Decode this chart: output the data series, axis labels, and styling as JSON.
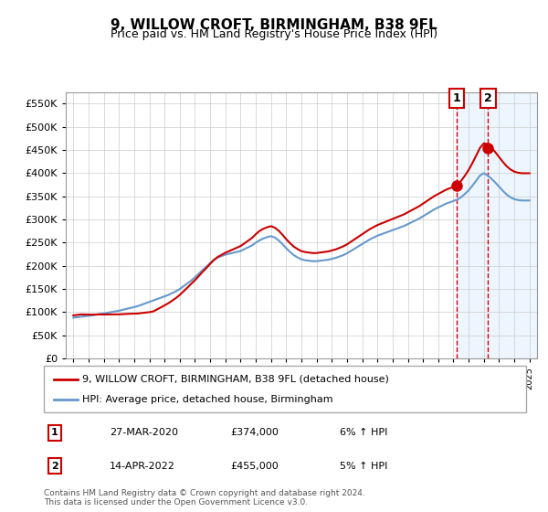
{
  "title": "9, WILLOW CROFT, BIRMINGHAM, B38 9FL",
  "subtitle": "Price paid vs. HM Land Registry's House Price Index (HPI)",
  "legend_label1": "9, WILLOW CROFT, BIRMINGHAM, B38 9FL (detached house)",
  "legend_label2": "HPI: Average price, detached house, Birmingham",
  "annotation1_label": "1",
  "annotation1_date": "27-MAR-2020",
  "annotation1_price": "£374,000",
  "annotation1_hpi": "6% ↑ HPI",
  "annotation2_label": "2",
  "annotation2_date": "14-APR-2022",
  "annotation2_price": "£455,000",
  "annotation2_hpi": "5% ↑ HPI",
  "footer": "Contains HM Land Registry data © Crown copyright and database right 2024.\nThis data is licensed under the Open Government Licence v3.0.",
  "line1_color": "#cc0000",
  "line2_color": "#6699cc",
  "shade_color": "#ddeeff",
  "vline_color": "#cc0000",
  "marker1_x": 2020.23,
  "marker1_y": 374000,
  "marker2_x": 2022.28,
  "marker2_y": 455000,
  "vline1_x": 2020.23,
  "vline2_x": 2022.28,
  "ylim": [
    0,
    575000
  ],
  "xlim": [
    1994.5,
    2025.5
  ],
  "yticks": [
    0,
    50000,
    100000,
    150000,
    200000,
    250000,
    300000,
    350000,
    400000,
    450000,
    500000,
    550000
  ],
  "ytick_labels": [
    "£0",
    "£50K",
    "£100K",
    "£150K",
    "£200K",
    "£250K",
    "£300K",
    "£350K",
    "£400K",
    "£450K",
    "£500K",
    "£550K"
  ],
  "xticks": [
    1995,
    1996,
    1997,
    1998,
    1999,
    2000,
    2001,
    2002,
    2003,
    2004,
    2005,
    2006,
    2007,
    2008,
    2009,
    2010,
    2011,
    2012,
    2013,
    2014,
    2015,
    2016,
    2017,
    2018,
    2019,
    2020,
    2021,
    2022,
    2023,
    2024,
    2025
  ],
  "hpi_years": [
    1995,
    1995.25,
    1995.5,
    1995.75,
    1996,
    1996.25,
    1996.5,
    1996.75,
    1997,
    1997.25,
    1997.5,
    1997.75,
    1998,
    1998.25,
    1998.5,
    1998.75,
    1999,
    1999.25,
    1999.5,
    1999.75,
    2000,
    2000.25,
    2000.5,
    2000.75,
    2001,
    2001.25,
    2001.5,
    2001.75,
    2002,
    2002.25,
    2002.5,
    2002.75,
    2003,
    2003.25,
    2003.5,
    2003.75,
    2004,
    2004.25,
    2004.5,
    2004.75,
    2005,
    2005.25,
    2005.5,
    2005.75,
    2006,
    2006.25,
    2006.5,
    2006.75,
    2007,
    2007.25,
    2007.5,
    2007.75,
    2008,
    2008.25,
    2008.5,
    2008.75,
    2009,
    2009.25,
    2009.5,
    2009.75,
    2010,
    2010.25,
    2010.5,
    2010.75,
    2011,
    2011.25,
    2011.5,
    2011.75,
    2012,
    2012.25,
    2012.5,
    2012.75,
    2013,
    2013.25,
    2013.5,
    2013.75,
    2014,
    2014.25,
    2014.5,
    2014.75,
    2015,
    2015.25,
    2015.5,
    2015.75,
    2016,
    2016.25,
    2016.5,
    2016.75,
    2017,
    2017.25,
    2017.5,
    2017.75,
    2018,
    2018.25,
    2018.5,
    2018.75,
    2019,
    2019.25,
    2019.5,
    2019.75,
    2020,
    2020.25,
    2020.5,
    2020.75,
    2021,
    2021.25,
    2021.5,
    2021.75,
    2022,
    2022.25,
    2022.5,
    2022.75,
    2023,
    2023.25,
    2023.5,
    2023.75,
    2024,
    2024.25,
    2024.5,
    2024.75,
    2025
  ],
  "hpi_values": [
    88000,
    89000,
    90000,
    91000,
    92000,
    93000,
    94500,
    96000,
    97000,
    98500,
    100000,
    101500,
    103000,
    105000,
    107000,
    109000,
    111000,
    113000,
    116000,
    119000,
    122000,
    125000,
    128000,
    131000,
    134000,
    137000,
    141000,
    145000,
    150000,
    156000,
    162000,
    168000,
    175000,
    183000,
    191000,
    198000,
    206000,
    213000,
    218000,
    221000,
    224000,
    226000,
    228000,
    230000,
    232000,
    236000,
    240000,
    244000,
    250000,
    255000,
    259000,
    262000,
    264000,
    261000,
    255000,
    247000,
    238000,
    230000,
    223000,
    218000,
    214000,
    212000,
    211000,
    210000,
    210000,
    211000,
    212000,
    213000,
    215000,
    217000,
    220000,
    223000,
    227000,
    232000,
    237000,
    242000,
    247000,
    252000,
    257000,
    261000,
    265000,
    268000,
    271000,
    274000,
    277000,
    280000,
    283000,
    286000,
    290000,
    294000,
    298000,
    302000,
    307000,
    312000,
    317000,
    322000,
    326000,
    330000,
    334000,
    337000,
    340000,
    343000,
    348000,
    355000,
    363000,
    373000,
    384000,
    395000,
    400000,
    395000,
    388000,
    380000,
    371000,
    362000,
    354000,
    348000,
    344000,
    342000,
    341000,
    341000,
    341000
  ],
  "sale_years": [
    1995.5,
    2000.2,
    2002.75,
    2007.3,
    2020.23,
    2022.28
  ],
  "sale_values": [
    95000,
    101000,
    161000,
    280000,
    374000,
    455000
  ],
  "shade_start": 2020.23,
  "shade_end": 2025.5
}
